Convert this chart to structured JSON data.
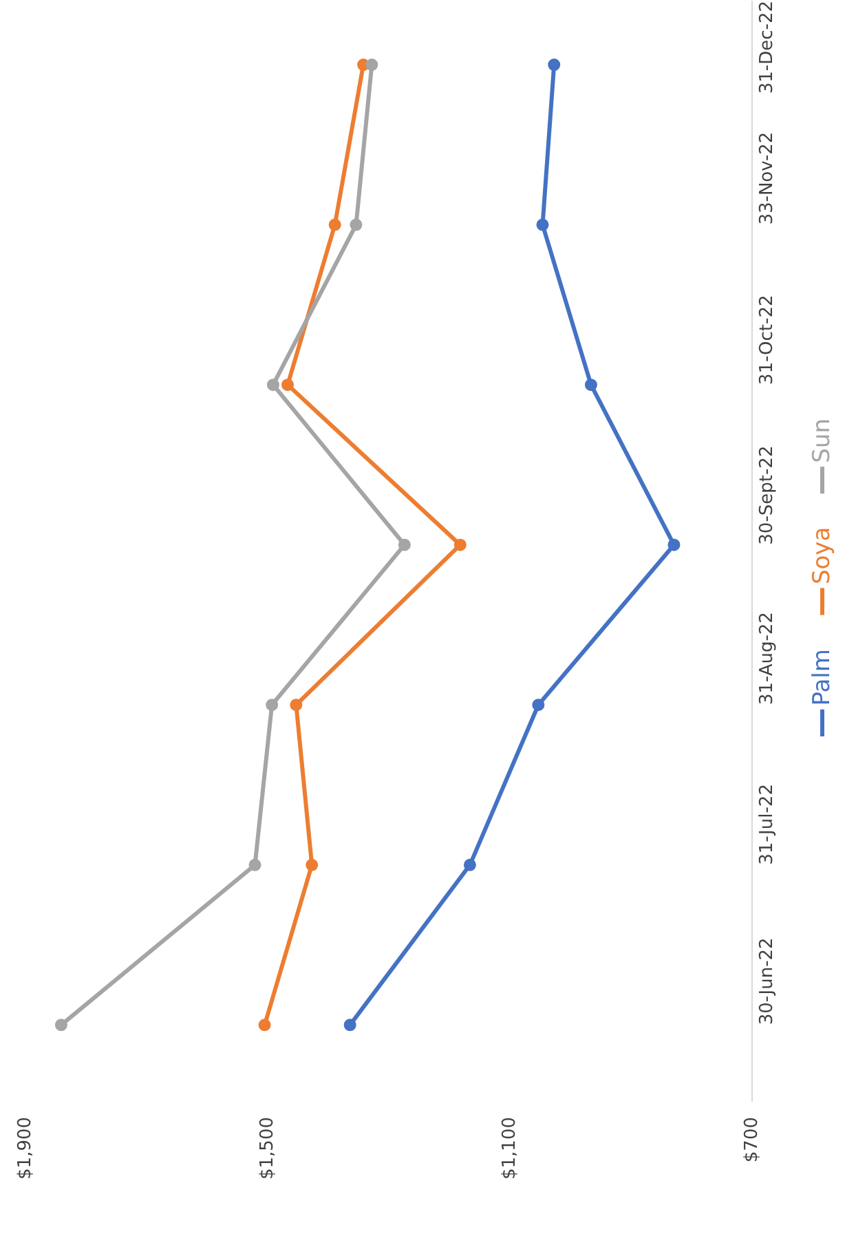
{
  "chart_data": {
    "type": "line",
    "orientation": "horizontal",
    "categories": [
      "31-Dec-22",
      "33-Nov-22",
      "31-Oct-22",
      "30-Sept-22",
      "31-Aug-22",
      "31-Jul-22",
      "30-Jun-22"
    ],
    "series": [
      {
        "name": "Palm",
        "color": "#4472c4",
        "values": [
          1027,
          1046,
          966,
          829,
          1053,
          1166,
          1364
        ]
      },
      {
        "name": "Soya",
        "color": "#ed7d31",
        "values": [
          1342,
          1389,
          1467,
          1182,
          1453,
          1427,
          1505
        ]
      },
      {
        "name": "Sun",
        "color": "#a5a5a5",
        "values": [
          1328,
          1354,
          1491,
          1274,
          1493,
          1521,
          1841
        ]
      }
    ],
    "xlim": [
      1900,
      700
    ],
    "xticks": [
      {
        "value": 1900,
        "label": "$1,900"
      },
      {
        "value": 1500,
        "label": "$1,500"
      },
      {
        "value": 1100,
        "label": "$1,100"
      },
      {
        "value": 700,
        "label": "$700"
      }
    ],
    "marker": "circle",
    "line_style": "solid",
    "grid": false,
    "legend": "right"
  }
}
